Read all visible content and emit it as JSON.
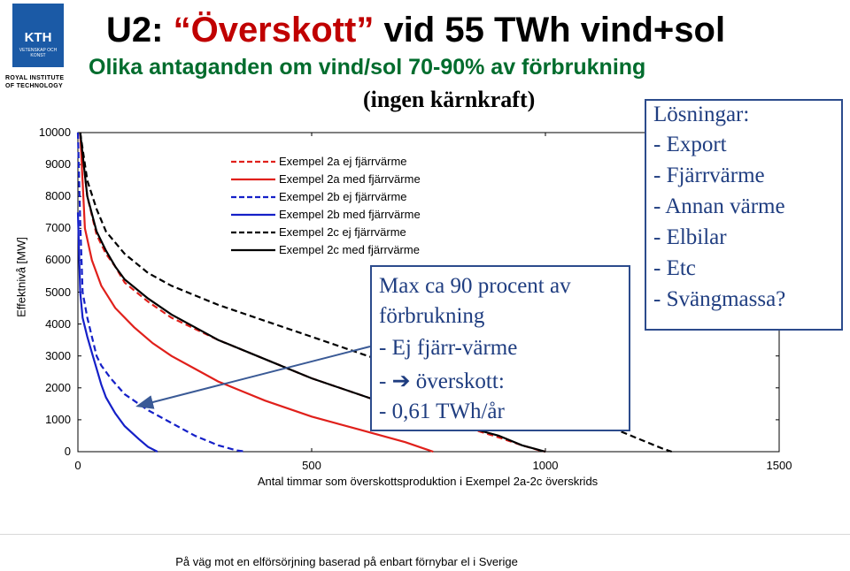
{
  "logo": {
    "mark": "KTH",
    "sub": "VETENSKAP OCH KONST",
    "caption_line1": "ROYAL INSTITUTE",
    "caption_line2": "OF TECHNOLOGY"
  },
  "title": {
    "prefix": "U2: ",
    "quoted": "“Överskott”",
    "suffix": " vid 55 TWh vind+sol"
  },
  "subtitle": "Olika antaganden om vind/sol 70-90% av förbrukning",
  "note_top": "(ingen kärnkraft)",
  "info_box": {
    "line1": "Max ca 90 procent av",
    "line2": "förbrukning",
    "line3": "- Ej fjärr-värme",
    "line4_prefix": "- ",
    "line4_arrow": "➔",
    "line4_text": " överskott:",
    "line5": "- 0,61 TWh/år"
  },
  "solutions_box": {
    "heading": "Lösningar:",
    "items": [
      "- Export",
      "- Fjärrvärme",
      "- Annan värme",
      "- Elbilar",
      "- Etc",
      "- Svängmassa?"
    ]
  },
  "footer": "På väg mot en elförsörjning baserad på enbart förnybar el i Sverige",
  "colors": {
    "title_accent": "#c00000",
    "subtitle": "#006c2d",
    "box_text": "#1f3d80",
    "red": "#e0201b",
    "blue": "#1520c8",
    "black": "#000000"
  },
  "chart_data": {
    "type": "line",
    "xlabel": "Antal timmar som överskottsproduktion i Exempel 2a-2c överskrids",
    "ylabel": "Effektnivå [MW]",
    "xlim": [
      0,
      1500
    ],
    "ylim": [
      0,
      10000
    ],
    "yticks": [
      "0",
      "1000",
      "2000",
      "3000",
      "4000",
      "5000",
      "6000",
      "7000",
      "8000",
      "9000",
      "10000"
    ],
    "xticks": [
      "0",
      "500",
      "1000",
      "1500"
    ],
    "legend_position": "top-left",
    "series": [
      {
        "name": "Exempel 2a ej fjärrvärme",
        "color": "#e0201b",
        "dash": true,
        "x": [
          5,
          20,
          40,
          60,
          80,
          100,
          150,
          200,
          300,
          400,
          500,
          600,
          700,
          800,
          900,
          950,
          985,
          1000
        ],
        "y": [
          10000,
          8000,
          6800,
          6200,
          5800,
          5300,
          4700,
          4200,
          3500,
          2900,
          2300,
          1800,
          1300,
          900,
          450,
          200,
          50,
          0
        ]
      },
      {
        "name": "Exempel 2a med fjärrvärme",
        "color": "#e0201b",
        "dash": false,
        "x": [
          5,
          15,
          30,
          50,
          80,
          120,
          160,
          200,
          250,
          300,
          350,
          400,
          500,
          600,
          700,
          740,
          760
        ],
        "y": [
          10000,
          7000,
          6000,
          5200,
          4500,
          3900,
          3400,
          3000,
          2600,
          2200,
          1900,
          1600,
          1100,
          700,
          300,
          100,
          0
        ]
      },
      {
        "name": "Exempel 2b ej fjärrvärme",
        "color": "#1520c8",
        "dash": true,
        "x": [
          0,
          5,
          10,
          20,
          30,
          40,
          50,
          70,
          100,
          150,
          200,
          250,
          300,
          340,
          360
        ],
        "y": [
          10000,
          7200,
          5000,
          4200,
          3600,
          3000,
          2700,
          2300,
          1800,
          1300,
          900,
          500,
          200,
          40,
          0
        ]
      },
      {
        "name": "Exempel 2b med fjärrvärme",
        "color": "#1520c8",
        "dash": false,
        "x": [
          0,
          5,
          10,
          20,
          30,
          40,
          50,
          60,
          80,
          100,
          130,
          150,
          170
        ],
        "y": [
          7500,
          5000,
          4200,
          3600,
          3100,
          2600,
          2100,
          1700,
          1200,
          800,
          400,
          150,
          0
        ]
      },
      {
        "name": "Exempel 2c ej fjärrvärme",
        "color": "#000000",
        "dash": true,
        "x": [
          5,
          20,
          40,
          60,
          100,
          150,
          200,
          300,
          400,
          500,
          600,
          700,
          800,
          900,
          1000,
          1100,
          1150,
          1200,
          1250,
          1270
        ],
        "y": [
          10000,
          8500,
          7600,
          6900,
          6200,
          5600,
          5200,
          4600,
          4100,
          3600,
          3100,
          2600,
          2200,
          1700,
          1300,
          900,
          700,
          400,
          100,
          0
        ]
      },
      {
        "name": "Exempel 2c med fjärrvärme",
        "color": "#000000",
        "dash": false,
        "x": [
          5,
          20,
          40,
          60,
          80,
          100,
          150,
          200,
          250,
          300,
          400,
          500,
          600,
          700,
          800,
          900,
          950,
          1000
        ],
        "y": [
          10000,
          8000,
          6900,
          6300,
          5800,
          5400,
          4800,
          4300,
          3900,
          3500,
          2900,
          2300,
          1800,
          1300,
          900,
          500,
          200,
          0
        ]
      }
    ]
  }
}
